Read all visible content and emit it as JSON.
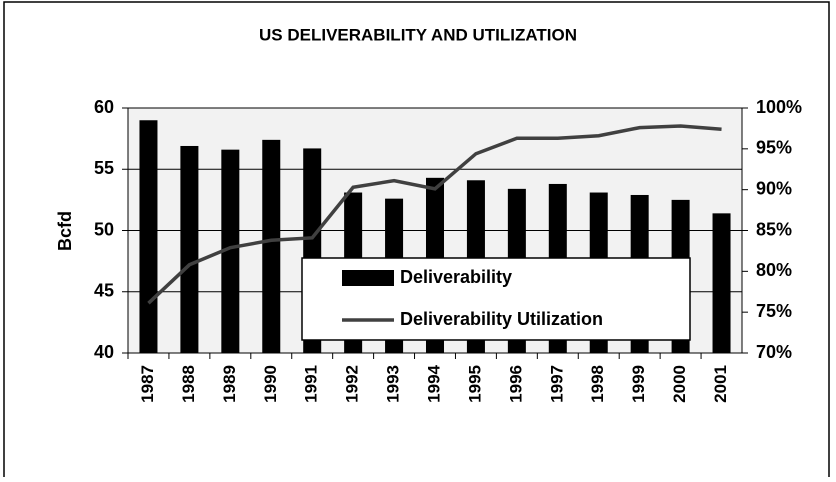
{
  "chart_data": {
    "type": "bar-line",
    "title": "US DELIVERABILITY AND UTILIZATION",
    "y_label": "Bcfd",
    "categories": [
      "1987",
      "1988",
      "1989",
      "1990",
      "1991",
      "1992",
      "1993",
      "1994",
      "1995",
      "1996",
      "1997",
      "1998",
      "1999",
      "2000",
      "2001"
    ],
    "series": [
      {
        "name": "Deliverability",
        "type": "bar",
        "color": "#000000",
        "values": [
          59.0,
          56.9,
          56.6,
          57.4,
          56.7,
          53.1,
          52.6,
          54.3,
          54.1,
          53.4,
          53.8,
          53.1,
          52.9,
          52.5,
          51.4
        ]
      },
      {
        "name": "Deliverability Utilization",
        "type": "line",
        "axis": "y2",
        "color": "#404040",
        "values": [
          76.1,
          80.8,
          82.9,
          83.8,
          84.1,
          90.3,
          91.1,
          90.1,
          94.4,
          96.3,
          96.3,
          96.6,
          97.6,
          97.8,
          97.4
        ]
      }
    ],
    "ylim": [
      40,
      60
    ],
    "yticks": [
      40,
      45,
      50,
      55,
      60
    ],
    "y2lim": [
      70,
      100
    ],
    "y2ticks": [
      {
        "value": 70,
        "label": "70%"
      },
      {
        "value": 75,
        "label": "75%"
      },
      {
        "value": 80,
        "label": "80%"
      },
      {
        "value": 85,
        "label": "85%"
      },
      {
        "value": 90,
        "label": "90%"
      },
      {
        "value": 95,
        "label": "95%"
      },
      {
        "value": 100,
        "label": "100%"
      }
    ],
    "grid": true
  }
}
